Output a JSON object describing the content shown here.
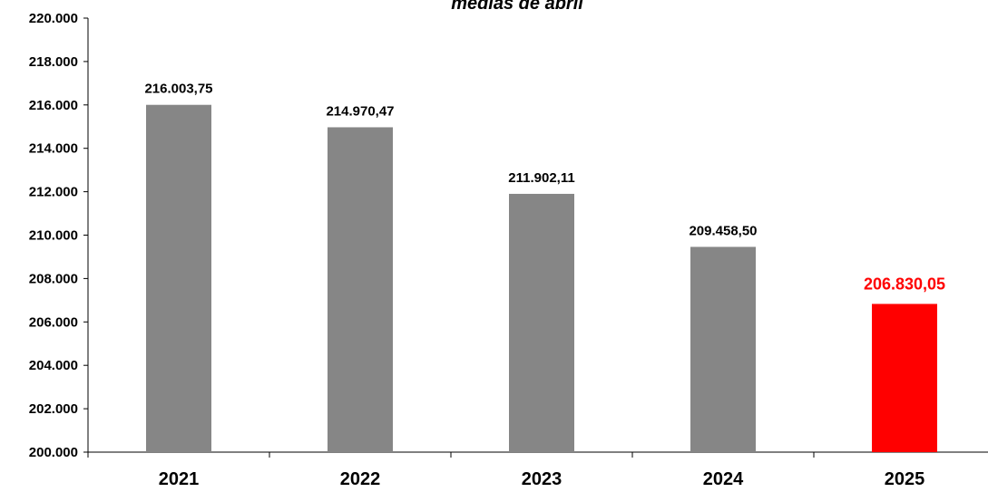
{
  "chart_data": {
    "type": "bar",
    "title": "medias de abril",
    "categories": [
      "2021",
      "2022",
      "2023",
      "2024",
      "2025"
    ],
    "values": [
      216003.75,
      214970.47,
      211902.11,
      209458.5,
      206830.05
    ],
    "value_labels": [
      "216.003,75",
      "214.970,47",
      "211.902,11",
      "209.458,50",
      "206.830,05"
    ],
    "bar_colors": [
      "#868686",
      "#868686",
      "#868686",
      "#868686",
      "#ff0000"
    ],
    "label_colors": [
      "#000000",
      "#000000",
      "#000000",
      "#000000",
      "#ff0000"
    ],
    "ylim": [
      200000,
      220000
    ],
    "yticks": [
      200000,
      202000,
      204000,
      206000,
      208000,
      210000,
      212000,
      214000,
      216000,
      218000,
      220000
    ],
    "ytick_labels": [
      "200.000",
      "202.000",
      "204.000",
      "206.000",
      "208.000",
      "210.000",
      "212.000",
      "214.000",
      "216.000",
      "218.000",
      "220.000"
    ],
    "grid": false,
    "legend": "none"
  }
}
